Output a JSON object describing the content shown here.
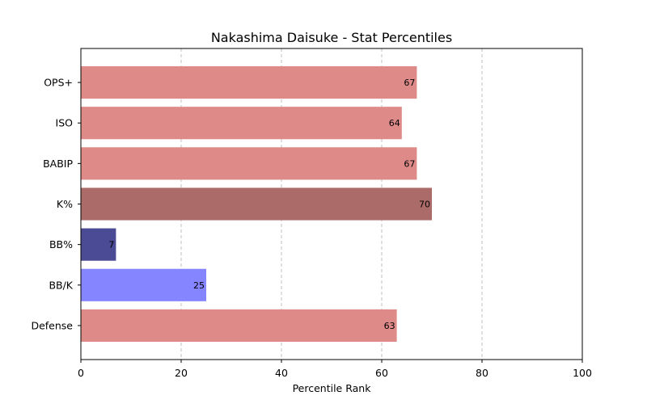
{
  "chart_data": {
    "type": "bar",
    "orientation": "horizontal",
    "title": "Nakashima Daisuke - Stat Percentiles",
    "xlabel": "Percentile Rank",
    "ylabel": "",
    "xlim": [
      0,
      100
    ],
    "x_ticks": [
      0,
      20,
      40,
      60,
      80,
      100
    ],
    "grid": "x-dashed",
    "categories": [
      "OPS+",
      "ISO",
      "BABIP",
      "K%",
      "BB%",
      "BB/K",
      "Defense"
    ],
    "values": [
      67,
      64,
      67,
      70,
      7,
      25,
      63
    ],
    "colors": [
      "#de8a89",
      "#de8a89",
      "#de8a89",
      "#ab6b69",
      "#4a4a95",
      "#8585ff",
      "#de8a89"
    ]
  }
}
